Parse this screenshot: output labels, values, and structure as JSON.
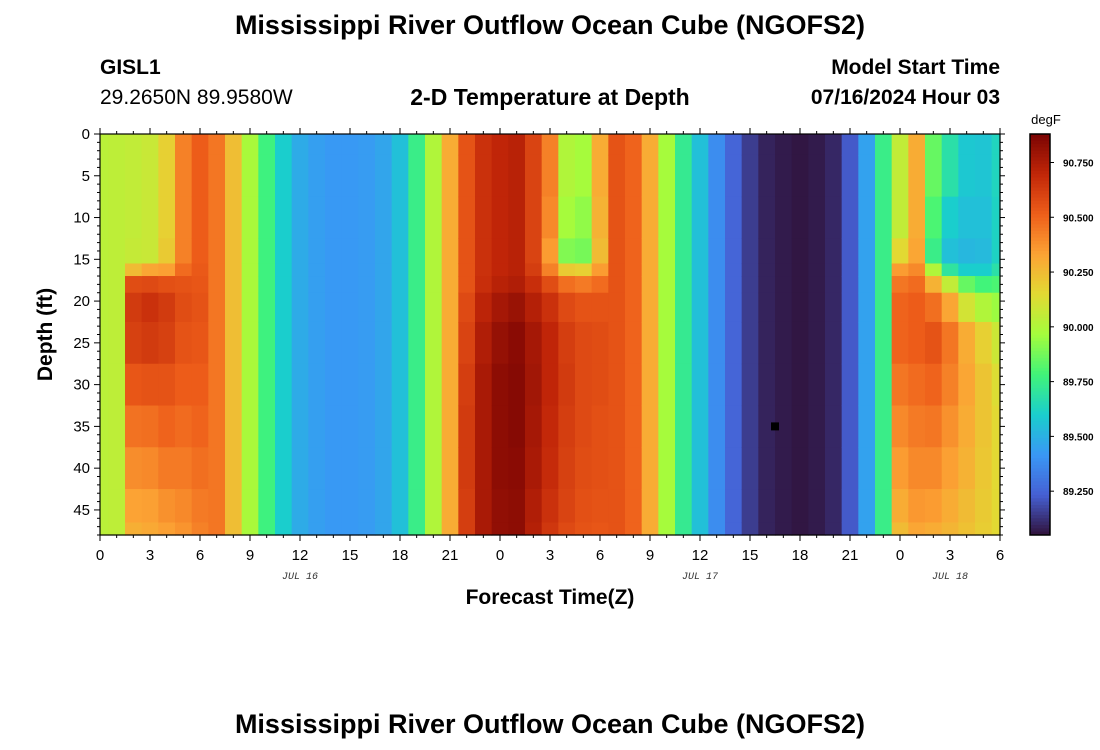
{
  "page": {
    "title": "Mississippi River Outflow Ocean Cube (NGOFS2)",
    "bottom_title": "Mississippi River Outflow Ocean Cube (NGOFS2)",
    "station_id": "GISL1",
    "coordinates": "29.2650N  89.9580W",
    "plot_title": "2-D Temperature at Depth",
    "model_start_label": "Model Start Time",
    "model_start_value": "07/16/2024 Hour 03"
  },
  "chart_data": {
    "type": "heatmap",
    "title": "2-D Temperature at Depth",
    "xlabel": "Forecast Time(Z)",
    "ylabel": "Depth (ft)",
    "xlim": [
      0,
      54
    ],
    "ylim": [
      0,
      48
    ],
    "y_inverted": true,
    "x_tick_labels": [
      "0",
      "3",
      "6",
      "9",
      "12",
      "15",
      "18",
      "21",
      "0",
      "3",
      "6",
      "9",
      "12",
      "15",
      "18",
      "21",
      "0",
      "3",
      "6"
    ],
    "y_ticks": [
      0,
      5,
      10,
      15,
      20,
      25,
      30,
      35,
      40,
      45
    ],
    "date_labels": [
      {
        "label": "JUL 16",
        "x": 12
      },
      {
        "label": "JUL 17",
        "x": 36
      },
      {
        "label": "JUL 18",
        "x": 51
      }
    ],
    "colorbar": {
      "unit": "degF",
      "range": [
        89.05,
        90.88
      ],
      "ticks": [
        "90.750",
        "90.500",
        "90.250",
        "90.000",
        "89.750",
        "89.500",
        "89.250"
      ],
      "tick_values": [
        90.75,
        90.5,
        90.25,
        90.0,
        89.75,
        89.5,
        89.25
      ]
    },
    "time_hours": [
      0,
      1,
      2,
      3,
      4,
      5,
      6,
      7,
      8,
      9,
      10,
      11,
      12,
      13,
      14,
      15,
      16,
      17,
      18,
      19,
      20,
      21,
      22,
      23,
      24,
      25,
      26,
      27,
      28,
      29,
      30,
      31,
      32,
      33,
      34,
      35,
      36,
      37,
      38,
      39,
      40,
      41,
      42,
      43,
      44,
      45,
      46,
      47,
      48,
      49,
      50,
      51,
      52,
      53,
      54
    ],
    "depth_levels_ft": [
      0,
      5,
      10,
      15,
      16,
      18,
      20,
      25,
      30,
      35,
      40,
      45,
      48
    ],
    "temperature_degF": [
      [
        90.03,
        90.03,
        90.03,
        90.03,
        90.03,
        90.03,
        90.03,
        90.03,
        90.03,
        90.03,
        90.03,
        90.03,
        90.03
      ],
      [
        90.04,
        90.04,
        90.04,
        90.04,
        90.04,
        90.04,
        90.04,
        90.04,
        90.04,
        90.04,
        90.04,
        90.04,
        90.04
      ],
      [
        90.05,
        90.05,
        90.05,
        90.06,
        90.25,
        90.57,
        90.63,
        90.61,
        90.54,
        90.46,
        90.39,
        90.33,
        90.29
      ],
      [
        90.07,
        90.07,
        90.07,
        90.07,
        90.32,
        90.58,
        90.66,
        90.63,
        90.55,
        90.47,
        90.4,
        90.34,
        90.31
      ],
      [
        90.18,
        90.18,
        90.18,
        90.2,
        90.34,
        90.56,
        90.63,
        90.61,
        90.55,
        90.5,
        90.44,
        90.38,
        90.34
      ],
      [
        90.42,
        90.42,
        90.42,
        90.42,
        90.48,
        90.55,
        90.57,
        90.55,
        90.52,
        90.48,
        90.44,
        90.4,
        90.37
      ],
      [
        90.52,
        90.52,
        90.52,
        90.52,
        90.53,
        90.54,
        90.55,
        90.54,
        90.52,
        90.5,
        90.47,
        90.44,
        90.42
      ],
      [
        90.45,
        90.45,
        90.45,
        90.45,
        90.45,
        90.45,
        90.45,
        90.45,
        90.45,
        90.45,
        90.45,
        90.45,
        90.45
      ],
      [
        90.24,
        90.24,
        90.24,
        90.24,
        90.24,
        90.24,
        90.24,
        90.24,
        90.24,
        90.24,
        90.24,
        90.24,
        90.24
      ],
      [
        89.98,
        89.98,
        89.98,
        89.98,
        89.98,
        89.98,
        89.98,
        89.98,
        89.98,
        89.98,
        89.98,
        89.98,
        89.98
      ],
      [
        89.77,
        89.77,
        89.77,
        89.77,
        89.77,
        89.77,
        89.77,
        89.77,
        89.77,
        89.77,
        89.77,
        89.77,
        89.77
      ],
      [
        89.6,
        89.6,
        89.6,
        89.6,
        89.6,
        89.6,
        89.6,
        89.6,
        89.6,
        89.6,
        89.6,
        89.6,
        89.6
      ],
      [
        89.48,
        89.48,
        89.48,
        89.48,
        89.48,
        89.48,
        89.48,
        89.48,
        89.48,
        89.48,
        89.48,
        89.48,
        89.48
      ],
      [
        89.44,
        89.44,
        89.44,
        89.44,
        89.44,
        89.44,
        89.44,
        89.44,
        89.44,
        89.44,
        89.44,
        89.44,
        89.44
      ],
      [
        89.42,
        89.42,
        89.42,
        89.42,
        89.42,
        89.42,
        89.42,
        89.42,
        89.42,
        89.42,
        89.42,
        89.42,
        89.42
      ],
      [
        89.42,
        89.42,
        89.42,
        89.42,
        89.42,
        89.42,
        89.42,
        89.42,
        89.42,
        89.42,
        89.42,
        89.42,
        89.42
      ],
      [
        89.43,
        89.43,
        89.43,
        89.43,
        89.43,
        89.43,
        89.43,
        89.43,
        89.43,
        89.43,
        89.43,
        89.43,
        89.43
      ],
      [
        89.46,
        89.46,
        89.46,
        89.46,
        89.46,
        89.46,
        89.46,
        89.46,
        89.46,
        89.46,
        89.46,
        89.46,
        89.46
      ],
      [
        89.55,
        89.55,
        89.55,
        89.55,
        89.55,
        89.55,
        89.55,
        89.55,
        89.55,
        89.55,
        89.55,
        89.55,
        89.55
      ],
      [
        89.75,
        89.75,
        89.75,
        89.75,
        89.75,
        89.75,
        89.75,
        89.75,
        89.75,
        89.75,
        89.75,
        89.75,
        89.75
      ],
      [
        90.0,
        90.0,
        90.0,
        90.0,
        90.0,
        90.0,
        90.0,
        90.0,
        90.0,
        90.0,
        90.0,
        90.0,
        90.0
      ],
      [
        90.3,
        90.3,
        90.3,
        90.3,
        90.3,
        90.3,
        90.3,
        90.3,
        90.3,
        90.3,
        90.3,
        90.3,
        90.3
      ],
      [
        90.55,
        90.55,
        90.55,
        90.55,
        90.55,
        90.55,
        90.58,
        90.6,
        90.62,
        90.63,
        90.63,
        90.62,
        90.62
      ],
      [
        90.66,
        90.66,
        90.66,
        90.66,
        90.66,
        90.67,
        90.71,
        90.74,
        90.76,
        90.76,
        90.76,
        90.76,
        90.76
      ],
      [
        90.7,
        90.7,
        90.7,
        90.7,
        90.7,
        90.72,
        90.77,
        90.81,
        90.83,
        90.83,
        90.83,
        90.82,
        90.82
      ],
      [
        90.72,
        90.72,
        90.72,
        90.72,
        90.72,
        90.74,
        90.8,
        90.84,
        90.85,
        90.85,
        90.84,
        90.83,
        90.83
      ],
      [
        90.6,
        90.6,
        90.6,
        90.6,
        90.62,
        90.67,
        90.73,
        90.77,
        90.78,
        90.77,
        90.76,
        90.74,
        90.73
      ],
      [
        90.42,
        90.42,
        90.4,
        90.35,
        90.42,
        90.57,
        90.66,
        90.7,
        90.7,
        90.69,
        90.68,
        90.66,
        90.64
      ],
      [
        90.0,
        90.0,
        89.97,
        89.9,
        90.2,
        90.47,
        90.58,
        90.62,
        90.63,
        90.62,
        90.61,
        90.6,
        90.58
      ],
      [
        89.97,
        89.97,
        89.93,
        89.88,
        90.18,
        90.44,
        90.55,
        90.58,
        90.58,
        90.58,
        90.57,
        90.56,
        90.55
      ],
      [
        90.3,
        90.3,
        90.28,
        90.25,
        90.35,
        90.48,
        90.55,
        90.57,
        90.57,
        90.56,
        90.56,
        90.55,
        90.54
      ],
      [
        90.55,
        90.55,
        90.55,
        90.55,
        90.55,
        90.55,
        90.55,
        90.55,
        90.55,
        90.55,
        90.55,
        90.55,
        90.55
      ],
      [
        90.5,
        90.5,
        90.5,
        90.5,
        90.5,
        90.5,
        90.5,
        90.5,
        90.5,
        90.5,
        90.5,
        90.5,
        90.5
      ],
      [
        90.3,
        90.3,
        90.3,
        90.3,
        90.3,
        90.3,
        90.3,
        90.3,
        90.3,
        90.3,
        90.3,
        90.3,
        90.3
      ],
      [
        89.97,
        89.97,
        89.97,
        89.97,
        89.97,
        89.97,
        89.97,
        89.97,
        89.97,
        89.97,
        89.97,
        89.97,
        89.97
      ],
      [
        89.73,
        89.73,
        89.73,
        89.73,
        89.73,
        89.73,
        89.73,
        89.73,
        89.73,
        89.73,
        89.73,
        89.73,
        89.73
      ],
      [
        89.55,
        89.55,
        89.55,
        89.55,
        89.55,
        89.55,
        89.55,
        89.55,
        89.55,
        89.55,
        89.55,
        89.55,
        89.55
      ],
      [
        89.38,
        89.38,
        89.38,
        89.38,
        89.38,
        89.38,
        89.38,
        89.38,
        89.38,
        89.38,
        89.38,
        89.38,
        89.38
      ],
      [
        89.25,
        89.25,
        89.25,
        89.25,
        89.25,
        89.25,
        89.25,
        89.25,
        89.25,
        89.25,
        89.25,
        89.25,
        89.25
      ],
      [
        89.15,
        89.15,
        89.15,
        89.15,
        89.15,
        89.15,
        89.15,
        89.15,
        89.15,
        89.15,
        89.15,
        89.15,
        89.15
      ],
      [
        89.09,
        89.09,
        89.09,
        89.09,
        89.09,
        89.09,
        89.09,
        89.09,
        89.09,
        89.09,
        89.09,
        89.09,
        89.09
      ],
      [
        89.07,
        89.07,
        89.07,
        89.07,
        89.07,
        89.07,
        89.07,
        89.07,
        89.07,
        89.07,
        89.07,
        89.07,
        89.07
      ],
      [
        89.06,
        89.06,
        89.06,
        89.06,
        89.06,
        89.06,
        89.06,
        89.06,
        89.06,
        89.06,
        89.06,
        89.06,
        89.06
      ],
      [
        89.07,
        89.07,
        89.07,
        89.07,
        89.07,
        89.07,
        89.07,
        89.07,
        89.07,
        89.07,
        89.07,
        89.07,
        89.07
      ],
      [
        89.1,
        89.1,
        89.1,
        89.1,
        89.1,
        89.1,
        89.1,
        89.1,
        89.1,
        89.1,
        89.1,
        89.1,
        89.1
      ],
      [
        89.22,
        89.22,
        89.22,
        89.22,
        89.22,
        89.22,
        89.22,
        89.22,
        89.22,
        89.22,
        89.22,
        89.22,
        89.22
      ],
      [
        89.45,
        89.45,
        89.45,
        89.45,
        89.45,
        89.45,
        89.45,
        89.45,
        89.45,
        89.45,
        89.45,
        89.45,
        89.45
      ],
      [
        89.75,
        89.75,
        89.75,
        89.75,
        89.75,
        89.75,
        89.75,
        89.75,
        89.75,
        89.75,
        89.75,
        89.75,
        89.75
      ],
      [
        90.05,
        90.05,
        90.05,
        90.15,
        90.35,
        90.45,
        90.5,
        90.5,
        90.45,
        90.4,
        90.35,
        90.3,
        90.25
      ],
      [
        90.3,
        90.3,
        90.3,
        90.32,
        90.4,
        90.48,
        90.52,
        90.52,
        90.48,
        90.44,
        90.4,
        90.36,
        90.32
      ],
      [
        89.85,
        89.85,
        89.8,
        89.75,
        90.0,
        90.28,
        90.47,
        90.55,
        90.5,
        90.45,
        90.4,
        90.35,
        90.3
      ],
      [
        89.68,
        89.68,
        89.6,
        89.55,
        89.7,
        90.05,
        90.32,
        90.45,
        90.42,
        90.38,
        90.34,
        90.3,
        90.27
      ],
      [
        89.58,
        89.58,
        89.55,
        89.52,
        89.6,
        89.85,
        90.1,
        90.3,
        90.32,
        90.3,
        90.28,
        90.25,
        90.23
      ],
      [
        89.57,
        89.57,
        89.55,
        89.53,
        89.6,
        89.78,
        90.0,
        90.18,
        90.22,
        90.22,
        90.21,
        90.2,
        90.19
      ],
      [
        89.63,
        89.63,
        89.62,
        89.62,
        89.68,
        89.8,
        89.95,
        90.08,
        90.13,
        90.15,
        90.15,
        90.15,
        90.15
      ]
    ]
  }
}
